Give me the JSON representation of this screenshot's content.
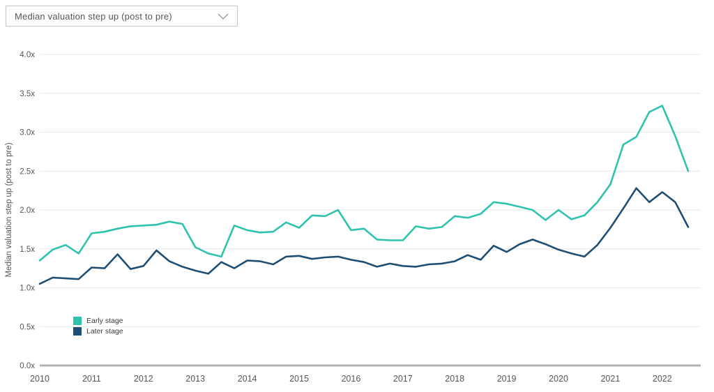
{
  "dropdown": {
    "value": "Median valuation step up (post to pre)",
    "chevron_icon": "chevron-down"
  },
  "colors": {
    "early_stage": "#2fc3ae",
    "later_stage": "#1f4e74",
    "axis_text": "#54565b",
    "grid_line": "#e6e7e8",
    "axis_line": "#b1b3b5"
  },
  "chart_data": {
    "type": "line",
    "title": "",
    "xlabel": "",
    "ylabel": "Median valuation step up (post to pre)",
    "ylim": [
      0.0,
      4.0
    ],
    "ytick_step": 0.5,
    "ytick_labels": [
      "0.0x",
      "0.5x",
      "1.0x",
      "1.5x",
      "2.0x",
      "2.5x",
      "3.0x",
      "3.5x",
      "4.0x"
    ],
    "xtick_labels": [
      "2010",
      "2011",
      "2012",
      "2013",
      "2014",
      "2015",
      "2016",
      "2017",
      "2018",
      "2019",
      "2020",
      "2021",
      "2022"
    ],
    "grid": true,
    "legend_position": "inside-bottom-left",
    "x_unit": "quarter",
    "x": [
      "2010Q1",
      "2010Q2",
      "2010Q3",
      "2010Q4",
      "2011Q1",
      "2011Q2",
      "2011Q3",
      "2011Q4",
      "2012Q1",
      "2012Q2",
      "2012Q3",
      "2012Q4",
      "2013Q1",
      "2013Q2",
      "2013Q3",
      "2013Q4",
      "2014Q1",
      "2014Q2",
      "2014Q3",
      "2014Q4",
      "2015Q1",
      "2015Q2",
      "2015Q3",
      "2015Q4",
      "2016Q1",
      "2016Q2",
      "2016Q3",
      "2016Q4",
      "2017Q1",
      "2017Q2",
      "2017Q3",
      "2017Q4",
      "2018Q1",
      "2018Q2",
      "2018Q3",
      "2018Q4",
      "2019Q1",
      "2019Q2",
      "2019Q3",
      "2019Q4",
      "2020Q1",
      "2020Q2",
      "2020Q3",
      "2020Q4",
      "2021Q1",
      "2021Q2",
      "2021Q3",
      "2021Q4",
      "2022Q1",
      "2022Q2",
      "2022Q3"
    ],
    "series": [
      {
        "name": "Early stage",
        "color": "#2fc3ae",
        "values": [
          1.35,
          1.49,
          1.55,
          1.44,
          1.7,
          1.72,
          1.76,
          1.79,
          1.8,
          1.81,
          1.85,
          1.82,
          1.52,
          1.44,
          1.4,
          1.8,
          1.74,
          1.71,
          1.72,
          1.84,
          1.77,
          1.93,
          1.92,
          2.0,
          1.74,
          1.76,
          1.62,
          1.61,
          1.61,
          1.79,
          1.76,
          1.78,
          1.92,
          1.9,
          1.95,
          2.1,
          2.08,
          2.04,
          2.0,
          1.87,
          2.0,
          1.88,
          1.93,
          2.1,
          2.33,
          2.84,
          2.94,
          3.26,
          3.34,
          2.95,
          2.5
        ]
      },
      {
        "name": "Later stage",
        "color": "#1f4e74",
        "values": [
          1.05,
          1.13,
          1.12,
          1.11,
          1.26,
          1.25,
          1.43,
          1.24,
          1.28,
          1.48,
          1.34,
          1.27,
          1.22,
          1.18,
          1.33,
          1.25,
          1.35,
          1.34,
          1.3,
          1.4,
          1.41,
          1.37,
          1.39,
          1.4,
          1.36,
          1.33,
          1.27,
          1.31,
          1.28,
          1.27,
          1.3,
          1.31,
          1.34,
          1.42,
          1.36,
          1.54,
          1.46,
          1.56,
          1.62,
          1.56,
          1.49,
          1.44,
          1.4,
          1.55,
          1.77,
          2.02,
          2.28,
          2.1,
          2.23,
          2.1,
          1.78
        ]
      }
    ]
  }
}
